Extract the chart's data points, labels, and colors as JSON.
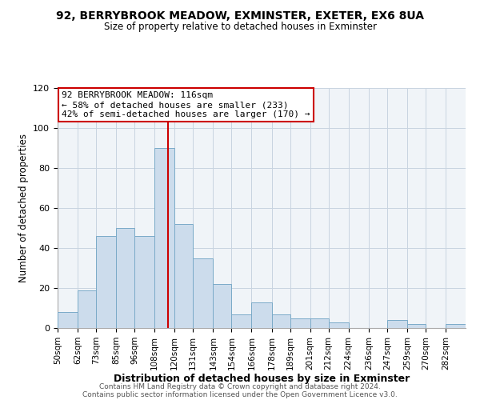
{
  "title": "92, BERRYBROOK MEADOW, EXMINSTER, EXETER, EX6 8UA",
  "subtitle": "Size of property relative to detached houses in Exminster",
  "xlabel": "Distribution of detached houses by size in Exminster",
  "ylabel": "Number of detached properties",
  "bar_color": "#ccdcec",
  "bar_edge_color": "#7aaac8",
  "bin_labels": [
    "50sqm",
    "62sqm",
    "73sqm",
    "85sqm",
    "96sqm",
    "108sqm",
    "120sqm",
    "131sqm",
    "143sqm",
    "154sqm",
    "166sqm",
    "178sqm",
    "189sqm",
    "201sqm",
    "212sqm",
    "224sqm",
    "236sqm",
    "247sqm",
    "259sqm",
    "270sqm",
    "282sqm"
  ],
  "bin_edges": [
    50,
    62,
    73,
    85,
    96,
    108,
    120,
    131,
    143,
    154,
    166,
    178,
    189,
    201,
    212,
    224,
    236,
    247,
    259,
    270,
    282
  ],
  "values": [
    8,
    19,
    46,
    50,
    46,
    90,
    52,
    35,
    22,
    7,
    13,
    7,
    5,
    5,
    3,
    0,
    0,
    4,
    2,
    0,
    2
  ],
  "vline_x": 116,
  "vline_color": "#cc0000",
  "annotation_line1": "92 BERRYBROOK MEADOW: 116sqm",
  "annotation_line2": "← 58% of detached houses are smaller (233)",
  "annotation_line3": "42% of semi-detached houses are larger (170) →",
  "annotation_box_color": "#cc0000",
  "ylim": [
    0,
    120
  ],
  "yticks": [
    0,
    20,
    40,
    60,
    80,
    100,
    120
  ],
  "footer1": "Contains HM Land Registry data © Crown copyright and database right 2024.",
  "footer2": "Contains public sector information licensed under the Open Government Licence v3.0.",
  "bg_color": "#f0f4f8"
}
